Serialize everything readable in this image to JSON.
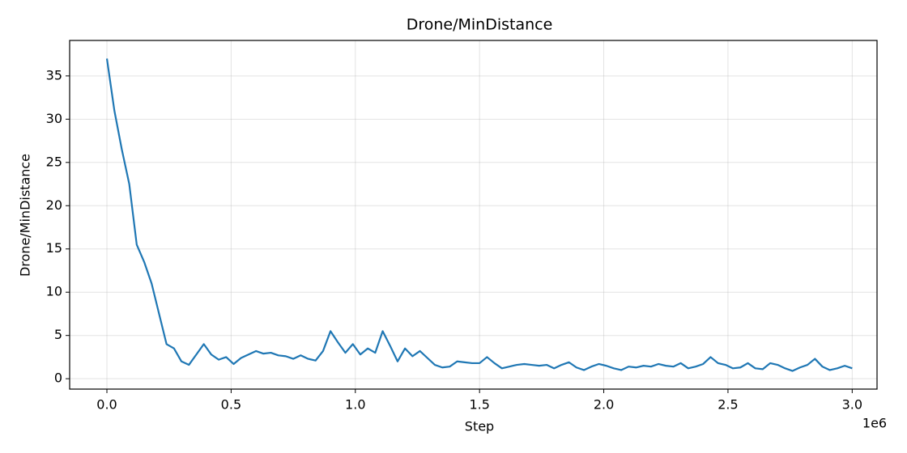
{
  "chart_data": {
    "type": "line",
    "title": "Drone/MinDistance",
    "xlabel": "Step",
    "ylabel": "Drone/MinDistance",
    "x_offset_label": "1e6",
    "x": [
      0,
      30000,
      60000,
      90000,
      120000,
      150000,
      180000,
      210000,
      240000,
      270000,
      300000,
      330000,
      360000,
      390000,
      420000,
      450000,
      480000,
      510000,
      540000,
      570000,
      600000,
      630000,
      660000,
      690000,
      720000,
      750000,
      780000,
      810000,
      840000,
      870000,
      900000,
      930000,
      960000,
      990000,
      1020000,
      1050000,
      1080000,
      1110000,
      1140000,
      1170000,
      1200000,
      1230000,
      1260000,
      1290000,
      1320000,
      1350000,
      1380000,
      1410000,
      1440000,
      1470000,
      1500000,
      1530000,
      1560000,
      1590000,
      1620000,
      1650000,
      1680000,
      1710000,
      1740000,
      1770000,
      1800000,
      1830000,
      1860000,
      1890000,
      1920000,
      1950000,
      1980000,
      2010000,
      2040000,
      2070000,
      2100000,
      2130000,
      2160000,
      2190000,
      2220000,
      2250000,
      2280000,
      2310000,
      2340000,
      2370000,
      2400000,
      2430000,
      2460000,
      2490000,
      2520000,
      2550000,
      2580000,
      2610000,
      2640000,
      2670000,
      2700000,
      2730000,
      2760000,
      2790000,
      2820000,
      2850000,
      2880000,
      2910000,
      2940000,
      2970000,
      3000000
    ],
    "values": [
      37.0,
      31,
      26.5,
      22.5,
      15.5,
      13.5,
      11,
      7.5,
      4.0,
      3.5,
      2.0,
      1.6,
      2.8,
      4.0,
      2.8,
      2.2,
      2.5,
      1.7,
      2.4,
      2.8,
      3.2,
      2.9,
      3.0,
      2.7,
      2.6,
      2.3,
      2.7,
      2.3,
      2.1,
      3.2,
      5.5,
      4.2,
      3.0,
      4.0,
      2.8,
      3.5,
      3.0,
      5.5,
      3.8,
      2.0,
      3.5,
      2.6,
      3.2,
      2.4,
      1.6,
      1.3,
      1.4,
      2.0,
      1.9,
      1.8,
      1.8,
      2.5,
      1.8,
      1.2,
      1.4,
      1.6,
      1.7,
      1.6,
      1.5,
      1.6,
      1.2,
      1.6,
      1.9,
      1.3,
      1.0,
      1.4,
      1.7,
      1.5,
      1.2,
      1.0,
      1.4,
      1.3,
      1.5,
      1.4,
      1.7,
      1.5,
      1.4,
      1.8,
      1.2,
      1.4,
      1.7,
      2.5,
      1.8,
      1.6,
      1.2,
      1.3,
      1.8,
      1.2,
      1.1,
      1.8,
      1.6,
      1.2,
      0.9,
      1.3,
      1.6,
      2.3,
      1.4,
      1.0,
      1.2,
      1.5,
      1.2
    ],
    "color": "#1f77b4",
    "xlim": [
      -150000,
      3100000
    ],
    "ylim": [
      -1.2,
      39.1
    ],
    "xticks": [
      {
        "value": 0,
        "label": "0.0"
      },
      {
        "value": 500000,
        "label": "0.5"
      },
      {
        "value": 1000000,
        "label": "1.0"
      },
      {
        "value": 1500000,
        "label": "1.5"
      },
      {
        "value": 2000000,
        "label": "2.0"
      },
      {
        "value": 2500000,
        "label": "2.5"
      },
      {
        "value": 3000000,
        "label": "3.0"
      }
    ],
    "yticks": [
      0,
      5,
      10,
      15,
      20,
      25,
      30,
      35
    ],
    "grid": true
  }
}
